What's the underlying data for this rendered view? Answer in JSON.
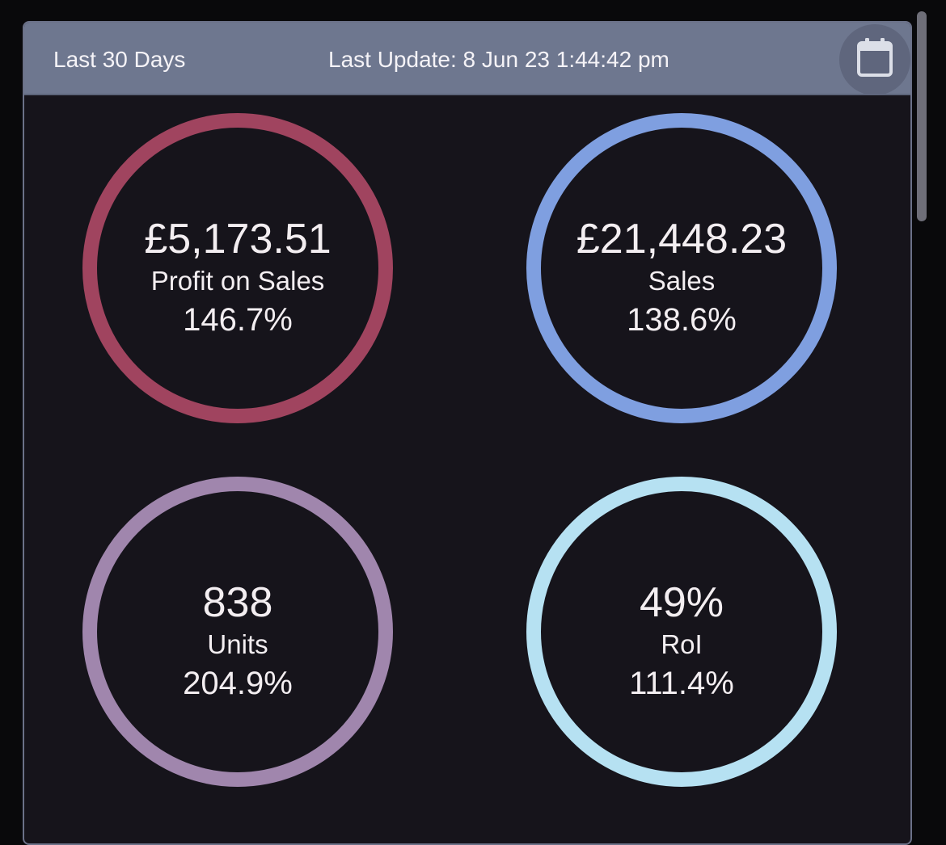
{
  "header": {
    "range_label": "Last 30 Days",
    "update_label": "Last Update: 8 Jun 23 1:44:42 pm",
    "calendar_icon": "calendar-icon"
  },
  "stats": [
    {
      "value": "£5,173.51",
      "label": "Profit on Sales",
      "pct": "146.7%",
      "color": "#a0445f"
    },
    {
      "value": "£21,448.23",
      "label": "Sales",
      "pct": "138.6%",
      "color": "#7f9fe0"
    },
    {
      "value": "838",
      "label": "Units",
      "pct": "204.9%",
      "color": "#a086ad"
    },
    {
      "value": "49%",
      "label": "RoI",
      "pct": "111.4%",
      "color": "#b6e1f2"
    }
  ],
  "colors": {
    "card_bg": "#16141b",
    "header_bg": "#6e778f",
    "text": "#f3eef1"
  }
}
